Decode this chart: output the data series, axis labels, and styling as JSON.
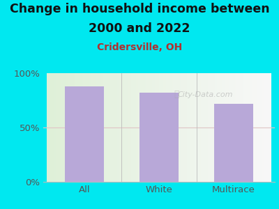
{
  "title_line1": "Change in household income between",
  "title_line2": "2000 and 2022",
  "subtitle": "Cridersville, OH",
  "categories": [
    "All",
    "White",
    "Multirace"
  ],
  "values": [
    88,
    82,
    72
  ],
  "bar_color": "#b8a8d8",
  "background_color": "#00e8f0",
  "title_fontsize": 12.5,
  "subtitle_fontsize": 10,
  "subtitle_color": "#b03030",
  "title_color": "#111111",
  "tick_label_color": "#555555",
  "ylim": [
    0,
    100
  ],
  "yticks": [
    0,
    50,
    100
  ],
  "ytick_labels": [
    "0%",
    "50%",
    "100%"
  ],
  "watermark": "City-Data.com",
  "grid_color": "#e0c8c8",
  "spine_color": "#bbbbbb"
}
